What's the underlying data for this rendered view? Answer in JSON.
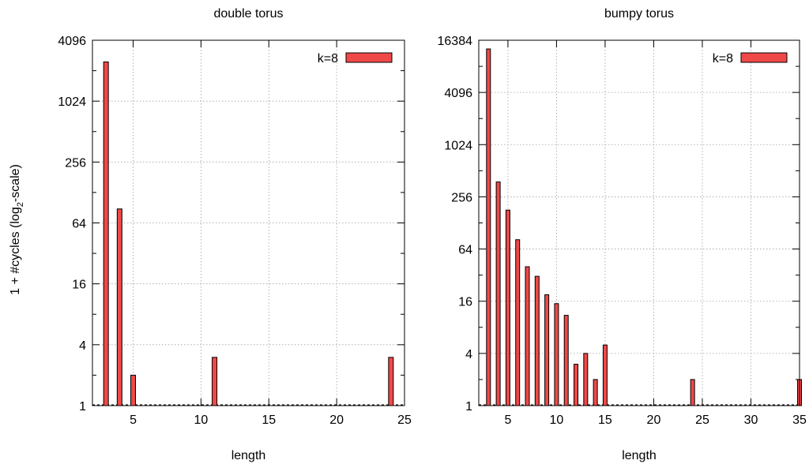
{
  "figure": {
    "ylabel": "1 + #cycles (log",
    "ylabel_sub": "2",
    "ylabel_tail": "-scale)"
  },
  "chart_data": [
    {
      "type": "bar",
      "title": "double torus",
      "xlabel": "length",
      "ylabel": "1 + #cycles (log2-scale)",
      "yscale": "log2",
      "xlim": [
        2,
        25
      ],
      "ylim": [
        1,
        4096
      ],
      "xticks": [
        5,
        10,
        15,
        20,
        25
      ],
      "yticks": [
        1,
        4,
        16,
        64,
        256,
        1024,
        4096
      ],
      "ytick_labels": [
        "1",
        "4",
        "16",
        "64",
        "256",
        "1024",
        "4096"
      ],
      "grid": true,
      "legend_position": "top-right",
      "series": [
        {
          "name": "k=8",
          "color": "#f04848",
          "x": [
            3,
            4,
            5,
            11,
            24
          ],
          "values": [
            2500,
            88,
            2,
            3,
            3
          ]
        }
      ]
    },
    {
      "type": "bar",
      "title": "bumpy torus",
      "xlabel": "length",
      "ylabel": "",
      "yscale": "log2",
      "xlim": [
        2,
        35
      ],
      "ylim": [
        1,
        16384
      ],
      "xticks": [
        5,
        10,
        15,
        20,
        25,
        30,
        35
      ],
      "yticks": [
        1,
        4,
        16,
        64,
        256,
        1024,
        4096,
        16384
      ],
      "ytick_labels": [
        "1",
        "4",
        "16",
        "64",
        "256",
        "1024",
        "4096",
        "16384"
      ],
      "grid": true,
      "legend_position": "top-right",
      "series": [
        {
          "name": "k=8",
          "color": "#f04848",
          "x": [
            3,
            4,
            5,
            6,
            7,
            8,
            9,
            10,
            11,
            12,
            13,
            14,
            15,
            24,
            35
          ],
          "values": [
            13000,
            380,
            180,
            82,
            40,
            31,
            19,
            15,
            11,
            3,
            4,
            2,
            5,
            2,
            2
          ]
        }
      ]
    }
  ]
}
